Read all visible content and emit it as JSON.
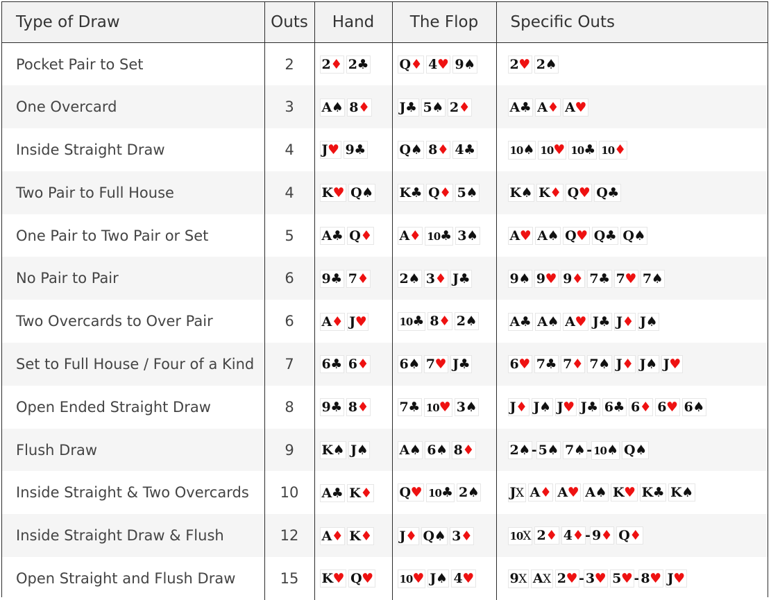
{
  "headers": [
    "Type of Draw",
    "Outs",
    "Hand",
    "The Flop",
    "Specific Outs"
  ],
  "suit_symbols": {
    "s": "♠",
    "h": "♥",
    "d": "♦",
    "c": "♣",
    "x": "X"
  },
  "colors": {
    "red_suit": "#ee1111",
    "black_suit": "#111111"
  },
  "rows": [
    {
      "type": "Pocket Pair to Set",
      "outs": "2",
      "hand": [
        [
          "2",
          "d"
        ],
        [
          "2",
          "c"
        ]
      ],
      "flop": [
        [
          "Q",
          "d"
        ],
        [
          "4",
          "h"
        ],
        [
          "9",
          "s"
        ]
      ],
      "specific": [
        [
          [
            "2",
            "h"
          ]
        ],
        [
          [
            "2",
            "s"
          ]
        ]
      ]
    },
    {
      "type": "One Overcard",
      "outs": "3",
      "hand": [
        [
          "A",
          "s"
        ],
        [
          "8",
          "d"
        ]
      ],
      "flop": [
        [
          "J",
          "c"
        ],
        [
          "5",
          "s"
        ],
        [
          "2",
          "d"
        ]
      ],
      "specific": [
        [
          [
            "A",
            "c"
          ]
        ],
        [
          [
            "A",
            "d"
          ]
        ],
        [
          [
            "A",
            "h"
          ]
        ]
      ]
    },
    {
      "type": "Inside Straight Draw",
      "outs": "4",
      "hand": [
        [
          "J",
          "h"
        ],
        [
          "9",
          "c"
        ]
      ],
      "flop": [
        [
          "Q",
          "s"
        ],
        [
          "8",
          "d"
        ],
        [
          "4",
          "c"
        ]
      ],
      "specific": [
        [
          [
            "10",
            "s"
          ]
        ],
        [
          [
            "10",
            "h"
          ]
        ],
        [
          [
            "10",
            "c"
          ]
        ],
        [
          [
            "10",
            "d"
          ]
        ]
      ]
    },
    {
      "type": "Two Pair to Full House",
      "outs": "4",
      "hand": [
        [
          "K",
          "h"
        ],
        [
          "Q",
          "s"
        ]
      ],
      "flop": [
        [
          "K",
          "c"
        ],
        [
          "Q",
          "d"
        ],
        [
          "5",
          "s"
        ]
      ],
      "specific": [
        [
          [
            "K",
            "s"
          ]
        ],
        [
          [
            "K",
            "d"
          ]
        ],
        [
          [
            "Q",
            "h"
          ]
        ],
        [
          [
            "Q",
            "c"
          ]
        ]
      ]
    },
    {
      "type": "One Pair to Two Pair or Set",
      "outs": "5",
      "hand": [
        [
          "A",
          "c"
        ],
        [
          "Q",
          "d"
        ]
      ],
      "flop": [
        [
          "A",
          "d"
        ],
        [
          "10",
          "c"
        ],
        [
          "3",
          "s"
        ]
      ],
      "specific": [
        [
          [
            "A",
            "h"
          ]
        ],
        [
          [
            "A",
            "s"
          ]
        ],
        [
          [
            "Q",
            "h"
          ]
        ],
        [
          [
            "Q",
            "c"
          ]
        ],
        [
          [
            "Q",
            "s"
          ]
        ]
      ]
    },
    {
      "type": "No Pair to Pair",
      "outs": "6",
      "hand": [
        [
          "9",
          "c"
        ],
        [
          "7",
          "d"
        ]
      ],
      "flop": [
        [
          "2",
          "s"
        ],
        [
          "3",
          "d"
        ],
        [
          "J",
          "c"
        ]
      ],
      "specific": [
        [
          [
            "9",
            "s"
          ]
        ],
        [
          [
            "9",
            "h"
          ]
        ],
        [
          [
            "9",
            "d"
          ]
        ],
        [
          [
            "7",
            "c"
          ]
        ],
        [
          [
            "7",
            "h"
          ]
        ],
        [
          [
            "7",
            "s"
          ]
        ]
      ]
    },
    {
      "type": "Two Overcards to Over Pair",
      "outs": "6",
      "hand": [
        [
          "A",
          "d"
        ],
        [
          "J",
          "h"
        ]
      ],
      "flop": [
        [
          "10",
          "c"
        ],
        [
          "8",
          "d"
        ],
        [
          "2",
          "s"
        ]
      ],
      "specific": [
        [
          [
            "A",
            "c"
          ]
        ],
        [
          [
            "A",
            "s"
          ]
        ],
        [
          [
            "A",
            "h"
          ]
        ],
        [
          [
            "J",
            "c"
          ]
        ],
        [
          [
            "J",
            "d"
          ]
        ],
        [
          [
            "J",
            "s"
          ]
        ]
      ]
    },
    {
      "type": "Set to Full House / Four of a Kind",
      "outs": "7",
      "hand": [
        [
          "6",
          "c"
        ],
        [
          "6",
          "d"
        ]
      ],
      "flop": [
        [
          "6",
          "s"
        ],
        [
          "7",
          "h"
        ],
        [
          "J",
          "c"
        ]
      ],
      "specific": [
        [
          [
            "6",
            "h"
          ]
        ],
        [
          [
            "7",
            "c"
          ]
        ],
        [
          [
            "7",
            "d"
          ]
        ],
        [
          [
            "7",
            "s"
          ]
        ],
        [
          [
            "J",
            "d"
          ]
        ],
        [
          [
            "J",
            "s"
          ]
        ],
        [
          [
            "J",
            "h"
          ]
        ]
      ]
    },
    {
      "type": "Open Ended Straight Draw",
      "outs": "8",
      "hand": [
        [
          "9",
          "c"
        ],
        [
          "8",
          "d"
        ]
      ],
      "flop": [
        [
          "7",
          "c"
        ],
        [
          "10",
          "h"
        ],
        [
          "3",
          "s"
        ]
      ],
      "specific": [
        [
          [
            "J",
            "d"
          ]
        ],
        [
          [
            "J",
            "s"
          ]
        ],
        [
          [
            "J",
            "h"
          ]
        ],
        [
          [
            "J",
            "c"
          ]
        ],
        [
          [
            "6",
            "c"
          ]
        ],
        [
          [
            "6",
            "d"
          ]
        ],
        [
          [
            "6",
            "h"
          ]
        ],
        [
          [
            "6",
            "s"
          ]
        ]
      ]
    },
    {
      "type": "Flush Draw",
      "outs": "9",
      "hand": [
        [
          "K",
          "s"
        ],
        [
          "J",
          "s"
        ]
      ],
      "flop": [
        [
          "A",
          "s"
        ],
        [
          "6",
          "s"
        ],
        [
          "8",
          "d"
        ]
      ],
      "specific": [
        [
          [
            "2",
            "s"
          ],
          [
            "5",
            "s"
          ]
        ],
        [
          [
            "7",
            "s"
          ],
          [
            "10",
            "s"
          ]
        ],
        [
          [
            "Q",
            "s"
          ]
        ]
      ]
    },
    {
      "type": "Inside Straight & Two Overcards",
      "outs": "10",
      "hand": [
        [
          "A",
          "c"
        ],
        [
          "K",
          "d"
        ]
      ],
      "flop": [
        [
          "Q",
          "h"
        ],
        [
          "10",
          "c"
        ],
        [
          "2",
          "s"
        ]
      ],
      "specific": [
        [
          [
            "J",
            "x"
          ]
        ],
        [
          [
            "A",
            "d"
          ]
        ],
        [
          [
            "A",
            "h"
          ]
        ],
        [
          [
            "A",
            "s"
          ]
        ],
        [
          [
            "K",
            "h"
          ]
        ],
        [
          [
            "K",
            "c"
          ]
        ],
        [
          [
            "K",
            "s"
          ]
        ]
      ]
    },
    {
      "type": "Inside Straight Draw & Flush",
      "outs": "12",
      "hand": [
        [
          "A",
          "d"
        ],
        [
          "K",
          "d"
        ]
      ],
      "flop": [
        [
          "J",
          "d"
        ],
        [
          "Q",
          "s"
        ],
        [
          "3",
          "d"
        ]
      ],
      "specific": [
        [
          [
            "10",
            "x"
          ]
        ],
        [
          [
            "2",
            "d"
          ]
        ],
        [
          [
            "4",
            "d"
          ],
          [
            "9",
            "d"
          ]
        ],
        [
          [
            "Q",
            "d"
          ]
        ]
      ]
    },
    {
      "type": "Open Straight and Flush Draw",
      "outs": "15",
      "hand": [
        [
          "K",
          "h"
        ],
        [
          "Q",
          "h"
        ]
      ],
      "flop": [
        [
          "10",
          "h"
        ],
        [
          "J",
          "s"
        ],
        [
          "4",
          "h"
        ]
      ],
      "specific": [
        [
          [
            "9",
            "x"
          ]
        ],
        [
          [
            "A",
            "x"
          ]
        ],
        [
          [
            "2",
            "h"
          ],
          [
            "3",
            "h"
          ]
        ],
        [
          [
            "5",
            "h"
          ],
          [
            "8",
            "h"
          ]
        ],
        [
          [
            "J",
            "h"
          ]
        ]
      ]
    }
  ]
}
